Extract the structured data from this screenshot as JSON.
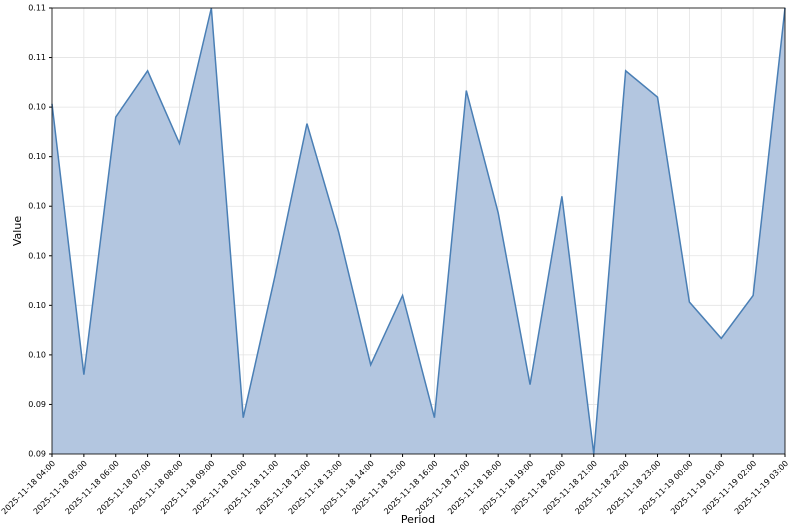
{
  "chart_data": {
    "type": "area",
    "x_label": "Period",
    "y_label": "Value",
    "categories": [
      "2025-11-18 04:00",
      "2025-11-18 05:00",
      "2025-11-18 06:00",
      "2025-11-18 07:00",
      "2025-11-18 08:00",
      "2025-11-18 09:00",
      "2025-11-18 10:00",
      "2025-11-18 11:00",
      "2025-11-18 12:00",
      "2025-11-18 13:00",
      "2025-11-18 14:00",
      "2025-11-18 15:00",
      "2025-11-18 16:00",
      "2025-11-18 17:00",
      "2025-11-18 18:00",
      "2025-11-18 19:00",
      "2025-11-18 20:00",
      "2025-11-18 21:00",
      "2025-11-18 22:00",
      "2025-11-18 23:00",
      "2025-11-19 00:00",
      "2025-11-19 01:00",
      "2025-11-19 02:00",
      "2025-11-19 03:00"
    ],
    "values": [
      0.1036,
      0.0954,
      0.1032,
      0.1046,
      0.1024,
      0.1065,
      0.0941,
      0.0984,
      0.103,
      0.0997,
      0.0957,
      0.0978,
      0.0941,
      0.104,
      0.1003,
      0.0951,
      0.1008,
      0.093,
      0.1046,
      0.1038,
      0.0976,
      0.0965,
      0.0978,
      0.1065
    ],
    "color": "#4a7fb5",
    "fill": "#b3c6e0",
    "ylim": [
      0.093,
      0.1065
    ],
    "yticks": [
      {
        "value": 0.093,
        "label": "0.09"
      },
      {
        "value": 0.0945,
        "label": "0.09"
      },
      {
        "value": 0.096,
        "label": "0.10"
      },
      {
        "value": 0.0975,
        "label": "0.10"
      },
      {
        "value": 0.099,
        "label": "0.10"
      },
      {
        "value": 0.1005,
        "label": "0.10"
      },
      {
        "value": 0.102,
        "label": "0.10"
      },
      {
        "value": 0.1035,
        "label": "0.10"
      },
      {
        "value": 0.105,
        "label": "0.11"
      },
      {
        "value": 0.1065,
        "label": "0.11"
      }
    ],
    "grid": true
  }
}
